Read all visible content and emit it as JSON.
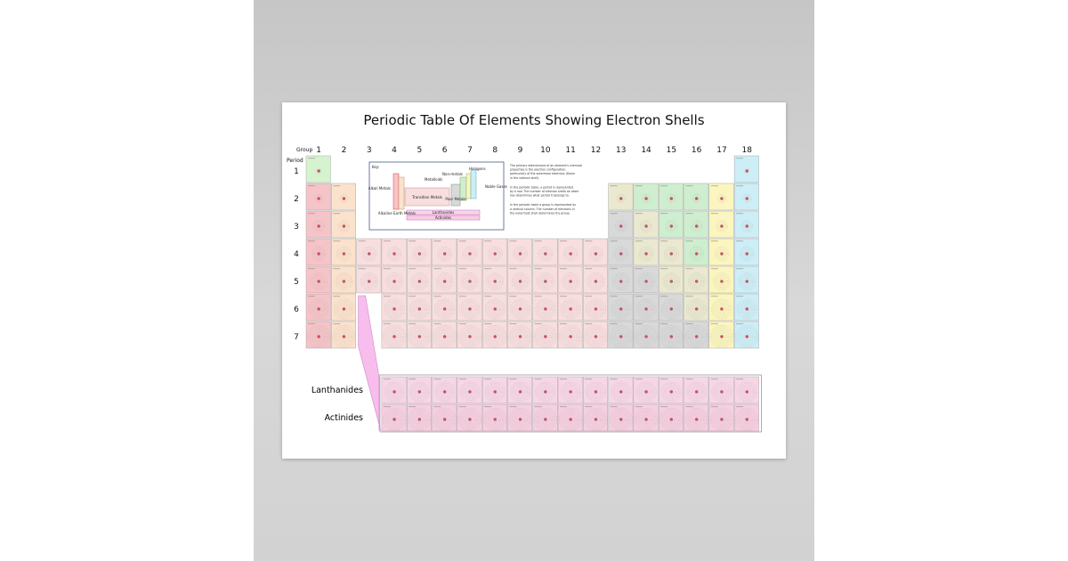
{
  "poster": {
    "title": "Periodic Table Of Elements Showing Electron Shells",
    "group_label": "Group",
    "period_label": "Period",
    "groups": [
      "1",
      "2",
      "3",
      "4",
      "5",
      "6",
      "7",
      "8",
      "9",
      "10",
      "11",
      "12",
      "13",
      "14",
      "15",
      "16",
      "17",
      "18"
    ],
    "periods": [
      "1",
      "2",
      "3",
      "4",
      "5",
      "6",
      "7"
    ],
    "key": {
      "label": "Key:",
      "non_metals": "Non-metals",
      "halogens": "Halogens",
      "metalloids": "Metalloids",
      "alkali_metals": "Alkali Metals",
      "transition_metals": "Transition Metals",
      "noble_gases": "Noble Gases",
      "poor_metals": "Poor Metals",
      "alkaline_earth_metals": "Alkaline Earth Metals",
      "lanthanides": "Lanthanides",
      "actinides": "Actinides"
    },
    "notes": [
      "The primary determinant of an element's chemical properties is the electron configuration, particularly of the outermost electrons (those in the valence shell).",
      "In the periodic table, a period is represented by a row. The number of electron shells an atom has determines what period it belongs to.",
      "In the periodic table a group is represented by a vertical column. The number of electrons in the outermost shell determines the group."
    ],
    "series_labels": {
      "lanthanides": "Lanthanides",
      "actinides": "Actinides"
    }
  },
  "colors": {
    "alkali": "#f6c4c8",
    "alkaline_earth": "#fbe2cc",
    "transition": "#f8dede",
    "poor_metal": "#d9d9d9",
    "metalloid": "#eae8cf",
    "non_metal": "#cfeecf",
    "halogen": "#fbf5bf",
    "noble_gas": "#cdeef6",
    "lanthanide": "#f7d6e6",
    "actinide": "#f6cfe0",
    "hydrogen": "#d6f3d0",
    "series_text": "#c2219c",
    "connector": "#f7b7ec"
  }
}
